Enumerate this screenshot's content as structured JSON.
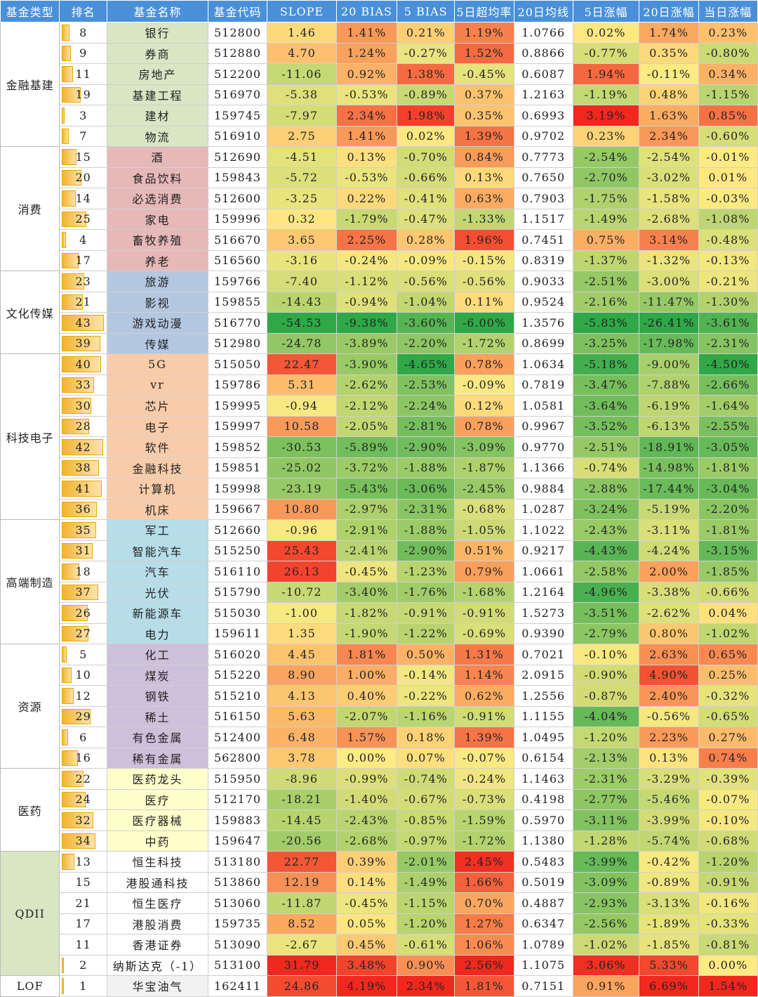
{
  "columns": [
    "基金类型",
    "排名",
    "基金名称",
    "基金代码",
    "SLOPE",
    "20 BIAS",
    "5 BIAS",
    "5日超均率",
    "20日均线",
    "5日涨幅",
    "20日涨幅",
    "当日涨幅"
  ],
  "max_rank": 43,
  "groups": [
    {
      "label": "金融基建",
      "color": "#ffffff",
      "name_color": "#d8e6c4",
      "rows": [
        {
          "rank": "8",
          "name": "银行",
          "code": "512800",
          "slope": "1.46",
          "b20": "1.41%",
          "b5": "0.21%",
          "r5": "1.19%",
          "ma20": "1.0766",
          "c5": "0.02%",
          "c20": "1.74%",
          "c1": "0.23%"
        },
        {
          "rank": "9",
          "name": "券商",
          "code": "512880",
          "slope": "4.70",
          "b20": "1.24%",
          "b5": "-0.27%",
          "r5": "1.52%",
          "ma20": "0.8866",
          "c5": "-0.77%",
          "c20": "0.35%",
          "c1": "-0.80%"
        },
        {
          "rank": "11",
          "name": "房地产",
          "code": "512200",
          "slope": "-11.06",
          "b20": "0.92%",
          "b5": "1.38%",
          "r5": "-0.45%",
          "ma20": "0.6087",
          "c5": "1.94%",
          "c20": "-0.11%",
          "c1": "0.34%"
        },
        {
          "rank": "19",
          "name": "基建工程",
          "code": "516970",
          "slope": "-5.38",
          "b20": "-0.53%",
          "b5": "-0.89%",
          "r5": "0.37%",
          "ma20": "1.2163",
          "c5": "-1.19%",
          "c20": "0.48%",
          "c1": "-1.15%"
        },
        {
          "rank": "3",
          "name": "建材",
          "code": "159745",
          "slope": "-7.97",
          "b20": "2.34%",
          "b5": "1.98%",
          "r5": "0.35%",
          "ma20": "0.6993",
          "c5": "3.19%",
          "c20": "1.63%",
          "c1": "0.85%"
        },
        {
          "rank": "7",
          "name": "物流",
          "code": "516910",
          "slope": "2.75",
          "b20": "1.41%",
          "b5": "0.02%",
          "r5": "1.39%",
          "ma20": "0.9702",
          "c5": "0.23%",
          "c20": "2.34%",
          "c1": "-0.60%"
        }
      ]
    },
    {
      "label": "消费",
      "color": "#ffffff",
      "name_color": "#e6b8b8",
      "rows": [
        {
          "rank": "15",
          "name": "酒",
          "code": "512690",
          "slope": "-4.51",
          "b20": "0.13%",
          "b5": "-0.70%",
          "r5": "0.84%",
          "ma20": "0.7773",
          "c5": "-2.54%",
          "c20": "-2.54%",
          "c1": "-0.01%"
        },
        {
          "rank": "20",
          "name": "食品饮料",
          "code": "159843",
          "slope": "-5.72",
          "b20": "-0.53%",
          "b5": "-0.66%",
          "r5": "0.13%",
          "ma20": "0.7650",
          "c5": "-2.70%",
          "c20": "-3.02%",
          "c1": "0.01%"
        },
        {
          "rank": "14",
          "name": "必选消费",
          "code": "512600",
          "slope": "-3.25",
          "b20": "0.22%",
          "b5": "-0.41%",
          "r5": "0.63%",
          "ma20": "0.7903",
          "c5": "-1.75%",
          "c20": "-1.58%",
          "c1": "-0.03%"
        },
        {
          "rank": "25",
          "name": "家电",
          "code": "159996",
          "slope": "0.32",
          "b20": "-1.79%",
          "b5": "-0.47%",
          "r5": "-1.33%",
          "ma20": "1.1517",
          "c5": "-1.49%",
          "c20": "-2.68%",
          "c1": "-1.08%"
        },
        {
          "rank": "4",
          "name": "畜牧养殖",
          "code": "516670",
          "slope": "3.65",
          "b20": "2.25%",
          "b5": "0.28%",
          "r5": "1.96%",
          "ma20": "0.7451",
          "c5": "0.75%",
          "c20": "3.14%",
          "c1": "-0.48%"
        },
        {
          "rank": "17",
          "name": "养老",
          "code": "516560",
          "slope": "-3.16",
          "b20": "-0.24%",
          "b5": "-0.09%",
          "r5": "-0.15%",
          "ma20": "0.8319",
          "c5": "-1.37%",
          "c20": "-1.32%",
          "c1": "-0.13%"
        }
      ]
    },
    {
      "label": "文化传媒",
      "color": "#ffffff",
      "name_color": "#b4c7e0",
      "rows": [
        {
          "rank": "23",
          "name": "旅游",
          "code": "159766",
          "slope": "-7.40",
          "b20": "-1.12%",
          "b5": "-0.56%",
          "r5": "-0.56%",
          "ma20": "0.9033",
          "c5": "-2.51%",
          "c20": "-3.00%",
          "c1": "-0.21%"
        },
        {
          "rank": "21",
          "name": "影视",
          "code": "159855",
          "slope": "-14.43",
          "b20": "-0.94%",
          "b5": "-1.04%",
          "r5": "0.11%",
          "ma20": "0.9524",
          "c5": "-2.16%",
          "c20": "-11.47%",
          "c1": "-1.30%"
        },
        {
          "rank": "43",
          "name": "游戏动漫",
          "code": "516770",
          "slope": "-54.53",
          "b20": "-9.38%",
          "b5": "-3.60%",
          "r5": "-6.00%",
          "ma20": "1.3576",
          "c5": "-5.83%",
          "c20": "-26.41%",
          "c1": "-3.61%"
        },
        {
          "rank": "39",
          "name": "传媒",
          "code": "512980",
          "slope": "-24.78",
          "b20": "-3.89%",
          "b5": "-2.20%",
          "r5": "-1.72%",
          "ma20": "0.8699",
          "c5": "-3.25%",
          "c20": "-17.98%",
          "c1": "-2.31%"
        }
      ]
    },
    {
      "label": "科技电子",
      "color": "#ffffff",
      "name_color": "#f9cca9",
      "rows": [
        {
          "rank": "40",
          "name": "5G",
          "code": "515050",
          "slope": "22.47",
          "b20": "-3.90%",
          "b5": "-4.65%",
          "r5": "0.78%",
          "ma20": "1.0634",
          "c5": "-5.18%",
          "c20": "-9.00%",
          "c1": "-4.50%"
        },
        {
          "rank": "33",
          "name": "vr",
          "code": "159786",
          "slope": "5.31",
          "b20": "-2.62%",
          "b5": "-2.53%",
          "r5": "-0.09%",
          "ma20": "0.7819",
          "c5": "-3.47%",
          "c20": "-7.88%",
          "c1": "-2.66%"
        },
        {
          "rank": "30",
          "name": "芯片",
          "code": "159995",
          "slope": "-0.94",
          "b20": "-2.12%",
          "b5": "-2.24%",
          "r5": "0.12%",
          "ma20": "1.0581",
          "c5": "-3.64%",
          "c20": "-6.19%",
          "c1": "-1.64%"
        },
        {
          "rank": "28",
          "name": "电子",
          "code": "159997",
          "slope": "10.58",
          "b20": "-2.05%",
          "b5": "-2.81%",
          "r5": "0.78%",
          "ma20": "0.9967",
          "c5": "-3.52%",
          "c20": "-6.13%",
          "c1": "-2.55%"
        },
        {
          "rank": "42",
          "name": "软件",
          "code": "159852",
          "slope": "-30.53",
          "b20": "-5.89%",
          "b5": "-2.90%",
          "r5": "-3.09%",
          "ma20": "0.9770",
          "c5": "-2.51%",
          "c20": "-18.91%",
          "c1": "-3.05%"
        },
        {
          "rank": "38",
          "name": "金融科技",
          "code": "159851",
          "slope": "-25.02",
          "b20": "-3.72%",
          "b5": "-1.88%",
          "r5": "-1.87%",
          "ma20": "1.1366",
          "c5": "-0.74%",
          "c20": "-14.98%",
          "c1": "-1.81%"
        },
        {
          "rank": "41",
          "name": "计算机",
          "code": "159998",
          "slope": "-23.19",
          "b20": "-5.43%",
          "b5": "-3.06%",
          "r5": "-2.45%",
          "ma20": "0.9884",
          "c5": "-2.88%",
          "c20": "-17.44%",
          "c1": "-3.04%"
        },
        {
          "rank": "36",
          "name": "机床",
          "code": "159667",
          "slope": "10.80",
          "b20": "-2.97%",
          "b5": "-2.31%",
          "r5": "-0.68%",
          "ma20": "1.0287",
          "c5": "-3.24%",
          "c20": "-5.19%",
          "c1": "-2.20%"
        }
      ]
    },
    {
      "label": "高端制造",
      "color": "#ffffff",
      "name_color": "#b6dde8",
      "rows": [
        {
          "rank": "35",
          "name": "军工",
          "code": "512660",
          "slope": "-0.96",
          "b20": "-2.91%",
          "b5": "-1.88%",
          "r5": "-1.05%",
          "ma20": "1.1022",
          "c5": "-2.43%",
          "c20": "-3.11%",
          "c1": "-1.81%"
        },
        {
          "rank": "31",
          "name": "智能汽车",
          "code": "515250",
          "slope": "25.43",
          "b20": "-2.41%",
          "b5": "-2.90%",
          "r5": "0.51%",
          "ma20": "0.9217",
          "c5": "-4.43%",
          "c20": "-4.24%",
          "c1": "-3.15%"
        },
        {
          "rank": "18",
          "name": "汽车",
          "code": "516110",
          "slope": "26.13",
          "b20": "-0.45%",
          "b5": "-1.23%",
          "r5": "0.79%",
          "ma20": "1.0661",
          "c5": "-2.58%",
          "c20": "2.00%",
          "c1": "-1.85%"
        },
        {
          "rank": "37",
          "name": "光伏",
          "code": "515790",
          "slope": "-10.72",
          "b20": "-3.40%",
          "b5": "-1.76%",
          "r5": "-1.68%",
          "ma20": "1.2164",
          "c5": "-4.96%",
          "c20": "-3.38%",
          "c1": "-0.66%"
        },
        {
          "rank": "26",
          "name": "新能源车",
          "code": "515030",
          "slope": "-1.00",
          "b20": "-1.82%",
          "b5": "-0.91%",
          "r5": "-0.91%",
          "ma20": "1.5273",
          "c5": "-3.51%",
          "c20": "-2.62%",
          "c1": "0.04%"
        },
        {
          "rank": "27",
          "name": "电力",
          "code": "159611",
          "slope": "1.35",
          "b20": "-1.90%",
          "b5": "-1.22%",
          "r5": "-0.69%",
          "ma20": "0.9390",
          "c5": "-2.79%",
          "c20": "0.80%",
          "c1": "-1.02%"
        }
      ]
    },
    {
      "label": "资源",
      "color": "#ffffff",
      "name_color": "#ccc0da",
      "rows": [
        {
          "rank": "5",
          "name": "化工",
          "code": "516020",
          "slope": "4.45",
          "b20": "1.81%",
          "b5": "0.50%",
          "r5": "1.31%",
          "ma20": "0.7021",
          "c5": "-0.10%",
          "c20": "2.63%",
          "c1": "0.65%"
        },
        {
          "rank": "10",
          "name": "煤炭",
          "code": "515220",
          "slope": "8.90",
          "b20": "1.00%",
          "b5": "-0.14%",
          "r5": "1.14%",
          "ma20": "2.0915",
          "c5": "-0.90%",
          "c20": "4.90%",
          "c1": "0.25%"
        },
        {
          "rank": "12",
          "name": "钢铁",
          "code": "515210",
          "slope": "4.13",
          "b20": "0.40%",
          "b5": "-0.22%",
          "r5": "0.62%",
          "ma20": "1.2556",
          "c5": "-0.87%",
          "c20": "2.40%",
          "c1": "-0.32%"
        },
        {
          "rank": "29",
          "name": "稀土",
          "code": "516150",
          "slope": "5.63",
          "b20": "-2.07%",
          "b5": "-1.16%",
          "r5": "-0.91%",
          "ma20": "1.1155",
          "c5": "-4.04%",
          "c20": "-0.56%",
          "c1": "-0.65%"
        },
        {
          "rank": "6",
          "name": "有色金属",
          "code": "512400",
          "slope": "6.48",
          "b20": "1.57%",
          "b5": "0.18%",
          "r5": "1.39%",
          "ma20": "1.0495",
          "c5": "-1.20%",
          "c20": "2.23%",
          "c1": "0.27%"
        },
        {
          "rank": "16",
          "name": "稀有金属",
          "code": "562800",
          "slope": "3.78",
          "b20": "0.00%",
          "b5": "0.07%",
          "r5": "-0.07%",
          "ma20": "0.6154",
          "c5": "-2.13%",
          "c20": "0.13%",
          "c1": "0.74%"
        }
      ]
    },
    {
      "label": "医药",
      "color": "#ffffff",
      "name_color": "#ffffcc",
      "rows": [
        {
          "rank": "22",
          "name": "医药龙头",
          "code": "515950",
          "slope": "-8.96",
          "b20": "-0.99%",
          "b5": "-0.74%",
          "r5": "-0.24%",
          "ma20": "1.1463",
          "c5": "-2.31%",
          "c20": "-3.29%",
          "c1": "-0.39%"
        },
        {
          "rank": "24",
          "name": "医疗",
          "code": "512170",
          "slope": "-18.21",
          "b20": "-1.40%",
          "b5": "-0.67%",
          "r5": "-0.73%",
          "ma20": "0.4198",
          "c5": "-2.77%",
          "c20": "-5.46%",
          "c1": "-0.07%"
        },
        {
          "rank": "32",
          "name": "医疗器械",
          "code": "159883",
          "slope": "-14.45",
          "b20": "-2.43%",
          "b5": "-0.85%",
          "r5": "-1.59%",
          "ma20": "0.5970",
          "c5": "-3.11%",
          "c20": "-3.99%",
          "c1": "-0.10%"
        },
        {
          "rank": "34",
          "name": "中药",
          "code": "159647",
          "slope": "-20.56",
          "b20": "-2.68%",
          "b5": "-0.97%",
          "r5": "-1.72%",
          "ma20": "1.1380",
          "c5": "-1.28%",
          "c20": "-5.74%",
          "c1": "-0.68%"
        }
      ]
    },
    {
      "label": "QDII",
      "color": "#d8e6c4",
      "name_color": "#ffffff",
      "rows": [
        {
          "rank": "13",
          "name": "恒生科技",
          "code": "513180",
          "slope": "22.77",
          "b20": "0.39%",
          "b5": "-2.01%",
          "r5": "2.45%",
          "ma20": "0.5483",
          "c5": "-3.99%",
          "c20": "-0.42%",
          "c1": "-1.20%"
        },
        {
          "rank": "15",
          "name": "港股通科技",
          "code": "513860",
          "slope": "12.19",
          "b20": "0.14%",
          "b5": "-1.49%",
          "r5": "1.66%",
          "ma20": "0.5019",
          "c5": "-3.09%",
          "c20": "-0.89%",
          "c1": "-0.91%"
        },
        {
          "rank": "21",
          "name": "恒生医疗",
          "code": "513060",
          "slope": "-11.87",
          "b20": "-0.45%",
          "b5": "-1.15%",
          "r5": "0.70%",
          "ma20": "0.4887",
          "c5": "-2.93%",
          "c20": "-3.13%",
          "c1": "-0.16%"
        },
        {
          "rank": "17",
          "name": "港股消费",
          "code": "159735",
          "slope": "8.52",
          "b20": "0.05%",
          "b5": "-1.20%",
          "r5": "1.27%",
          "ma20": "0.6347",
          "c5": "-2.56%",
          "c20": "-1.89%",
          "c1": "-0.33%"
        },
        {
          "rank": "11",
          "name": "香港证券",
          "code": "513090",
          "slope": "-2.67",
          "b20": "0.45%",
          "b5": "-0.61%",
          "r5": "1.06%",
          "ma20": "1.0789",
          "c5": "-1.02%",
          "c20": "-1.85%",
          "c1": "-0.81%"
        },
        {
          "rank": "2",
          "name": "纳斯达克（-1）",
          "code": "513100",
          "slope": "31.79",
          "b20": "3.48%",
          "b5": "0.90%",
          "r5": "2.56%",
          "ma20": "1.1075",
          "c5": "3.06%",
          "c20": "5.33%",
          "c1": "0.00%"
        }
      ]
    },
    {
      "label": "LOF",
      "color": "#ffffff",
      "name_color": "#f2f2f2",
      "rows": [
        {
          "rank": "1",
          "name": "华宝油气",
          "code": "162411",
          "slope": "24.86",
          "b20": "4.19%",
          "b5": "2.34%",
          "r5": "1.81%",
          "ma20": "0.7151",
          "c5": "0.91%",
          "c20": "6.69%",
          "c1": "1.54%"
        }
      ]
    }
  ],
  "rank_bar_rows": [
    "金融基建",
    "消费",
    "文化传媒",
    "科技电子",
    "高端制造",
    "资源",
    "医药",
    "QDII:13",
    "QDII:2",
    "LOF"
  ]
}
